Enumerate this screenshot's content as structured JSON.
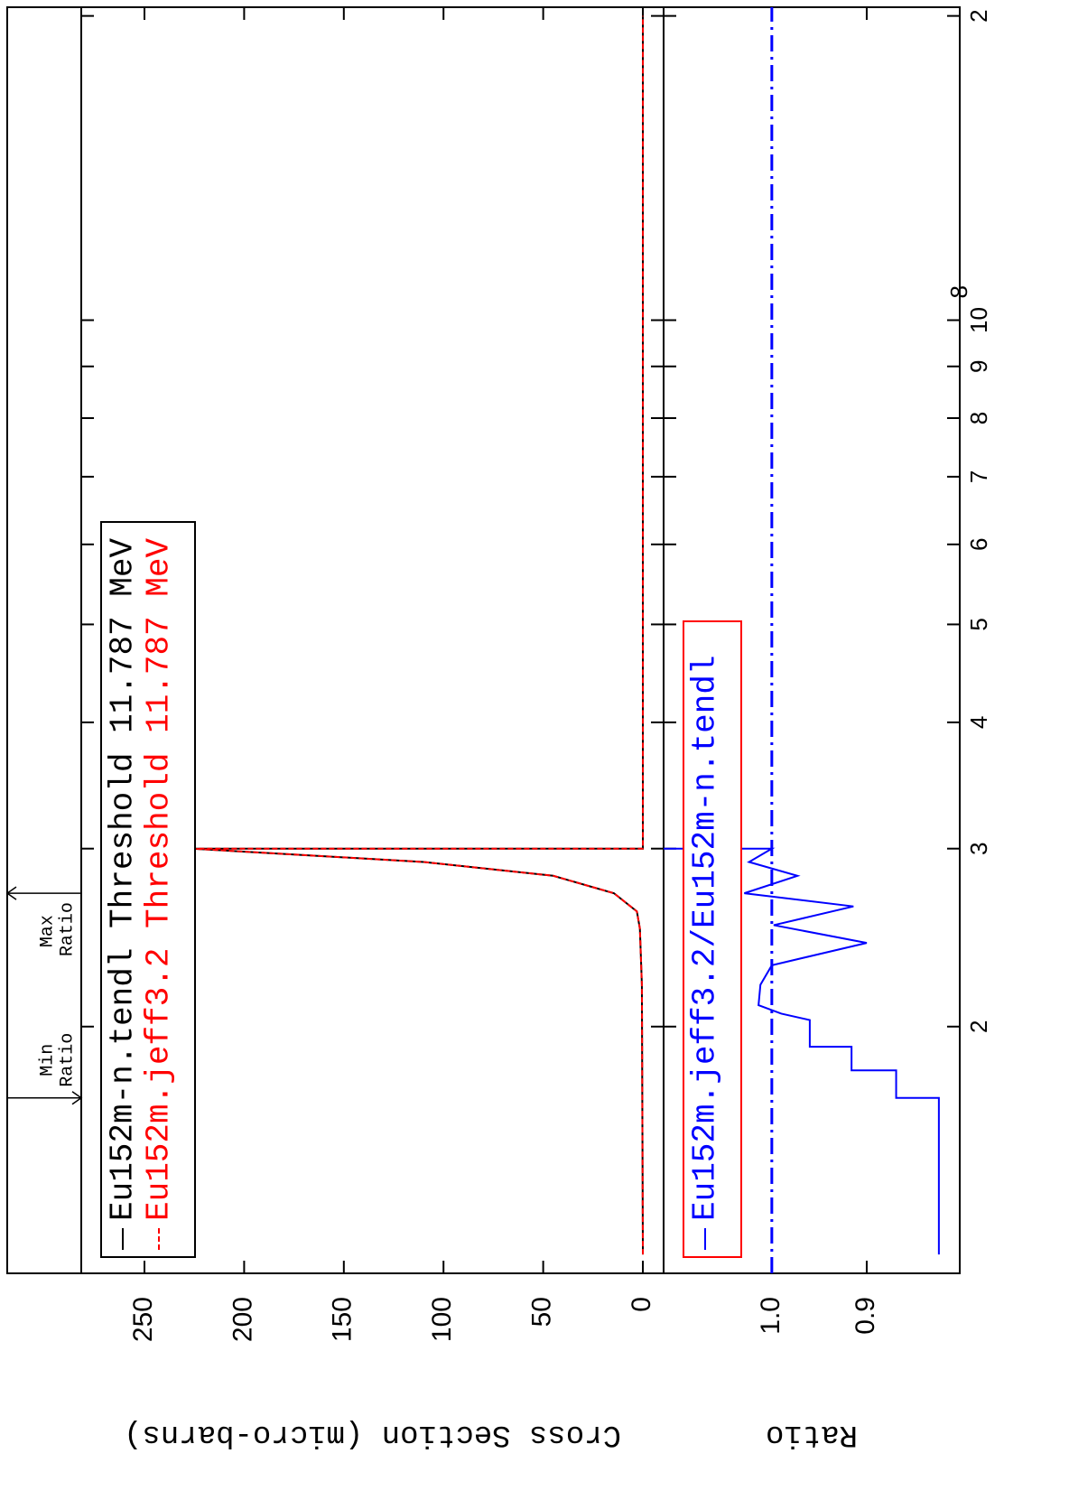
{
  "chart_data": [
    {
      "type": "line",
      "log_x": true,
      "xlim": [
        11400000,
        204000000
      ],
      "ylim": [
        -10.4,
        281.7
      ],
      "yticks": [
        0,
        50,
        100,
        150,
        200,
        250
      ],
      "ylabel": "Cross Section (micro-barns)",
      "legend_border": "#000000",
      "series": [
        {
          "name": "Eu152m-n.tendl Threshold 11.787 MeV",
          "color": "#000000",
          "line_style": "solid",
          "x": [
            11900000,
            22000000,
            25000000,
            26000000,
            27100000,
            28200000,
            29100000,
            30000000,
            30000000,
            200000000
          ],
          "values": [
            0,
            0.5,
            1.5,
            3,
            14.5,
            45,
            110,
            226,
            0,
            0
          ]
        },
        {
          "name": "Eu152m.jeff3.2 Threshold 11.787 MeV",
          "color": "#ff0000",
          "line_style": "dashed",
          "x": [
            11900000,
            22000000,
            25000000,
            26000000,
            27100000,
            28200000,
            29100000,
            30000000,
            30000000,
            200000000
          ],
          "values": [
            0,
            0.5,
            1.5,
            3,
            14.5,
            45,
            110,
            226,
            0,
            0
          ]
        }
      ],
      "annotations": [
        {
          "lines": [
            "Min",
            "Ratio"
          ],
          "x": 17000000,
          "arrow": "down"
        },
        {
          "lines": [
            "Max",
            "Ratio"
          ],
          "x": 27100000,
          "arrow": "up"
        }
      ]
    },
    {
      "type": "line",
      "log_x": true,
      "xlim": [
        11400000,
        204000000
      ],
      "xticks": [
        {
          "value": 20000000,
          "label": "2"
        },
        {
          "value": 30000000,
          "label": "3"
        },
        {
          "value": 40000000,
          "label": "4"
        },
        {
          "value": 50000000,
          "label": "5"
        },
        {
          "value": 60000000,
          "label": "6"
        },
        {
          "value": 70000000,
          "label": "7"
        },
        {
          "value": 80000000,
          "label": "8"
        },
        {
          "value": 90000000,
          "label": "9"
        },
        {
          "value": 100000000,
          "label": "10",
          "exponent": "8"
        },
        {
          "value": 200000000,
          "label": "2"
        }
      ],
      "ylim": [
        0.802,
        1.114
      ],
      "yticks": [
        {
          "value": 1.0,
          "label": "1.0"
        },
        {
          "value": 0.9,
          "label": "0.9"
        }
      ],
      "ylabel": "Ratio",
      "legend_border": "#ff0000",
      "reference_line": 1.0,
      "reference_color": "#0000ff",
      "series": [
        {
          "name": "Eu152m.jeff3.2/Eu152m-n.tendl",
          "color": "#0000ff",
          "line_style": "solid",
          "x": [
            11900000,
            17000000,
            17000000,
            18100000,
            18100000,
            19100000,
            19100000,
            20300000,
            20600000,
            21000000,
            22000000,
            23000000,
            24200000,
            25200000,
            26300000,
            27100000,
            28200000,
            29100000,
            30000000,
            30000000
          ],
          "values": [
            0.824,
            0.824,
            0.869,
            0.869,
            0.916,
            0.916,
            0.96,
            0.96,
            0.99,
            1.014,
            1.012,
            1.0,
            0.9,
            0.998,
            0.914,
            1.029,
            0.973,
            1.024,
            1.0,
            1.114
          ]
        }
      ]
    }
  ]
}
